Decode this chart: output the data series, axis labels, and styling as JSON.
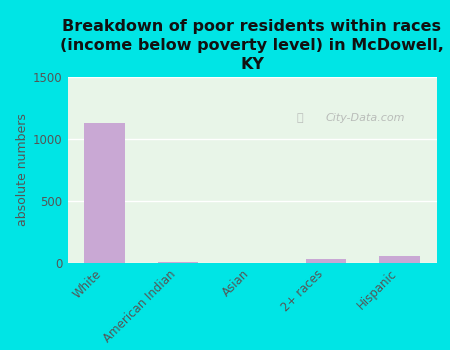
{
  "title": "Breakdown of poor residents within races\n(income below poverty level) in McDowell,\nKY",
  "categories": [
    "White",
    "American Indian",
    "Asian",
    "2+ races",
    "Hispanic"
  ],
  "values": [
    1130,
    8,
    0,
    25,
    55
  ],
  "bar_color": "#c9a8d4",
  "ylabel": "absolute numbers",
  "ylim": [
    0,
    1500
  ],
  "yticks": [
    0,
    500,
    1000,
    1500
  ],
  "background_color": "#00e5e5",
  "plot_bg_color": "#e8f5e8",
  "watermark": "City-Data.com",
  "title_fontsize": 11.5,
  "ylabel_fontsize": 9,
  "tick_fontsize": 8.5
}
